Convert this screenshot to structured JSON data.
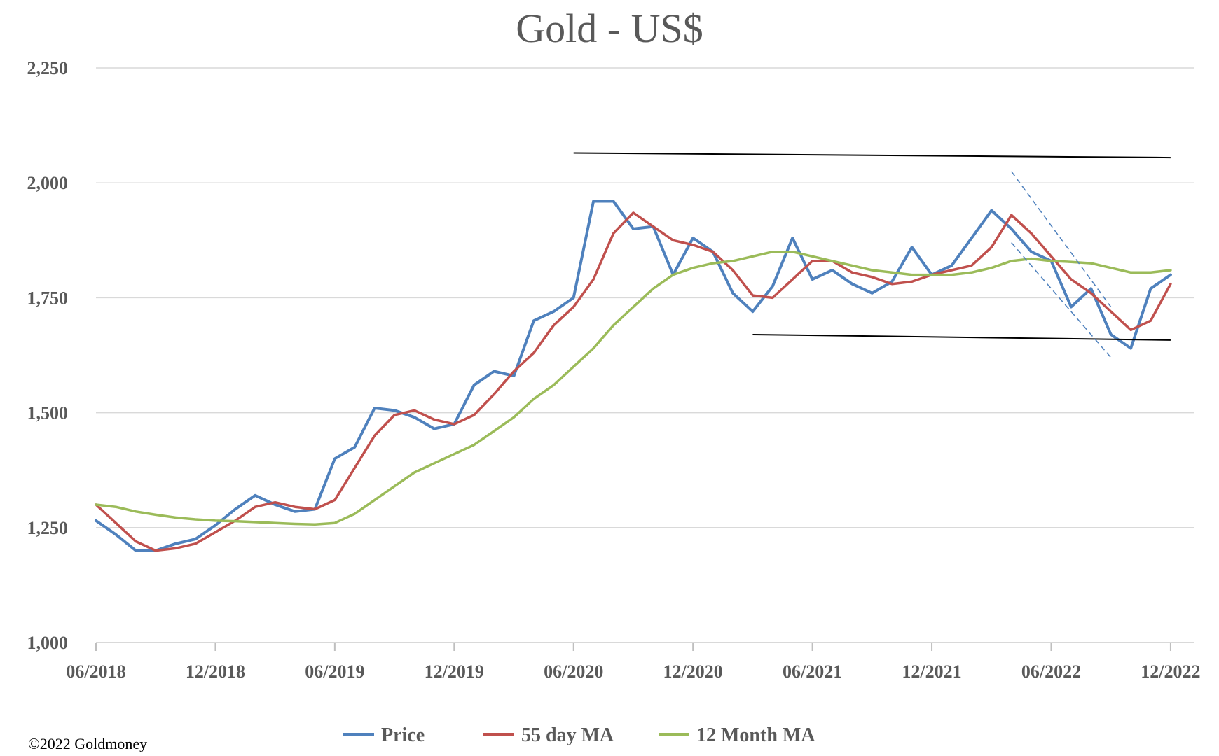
{
  "chart_data": {
    "type": "line",
    "title": "Gold - US$",
    "copyright": "©2022 Goldmoney",
    "ylim": [
      1000,
      2250
    ],
    "y_ticks": [
      1000,
      1250,
      1500,
      1750,
      2000,
      2250
    ],
    "y_tick_labels": [
      "1,000",
      "1,250",
      "1,500",
      "1,750",
      "2,000",
      "2,250"
    ],
    "x_ticks": [
      "06/2018",
      "12/2018",
      "06/2019",
      "12/2019",
      "06/2020",
      "12/2020",
      "06/2021",
      "12/2021",
      "06/2022",
      "12/2022"
    ],
    "x_range": [
      "06/2018",
      "12/2022"
    ],
    "grid": true,
    "legend_position": "bottom",
    "colors": {
      "price": "#4f81bd",
      "ma55": "#c0504d",
      "ma12m": "#9bbb59",
      "trendline": "#000000",
      "channel": "#4f81bd"
    },
    "series": [
      {
        "name": "Price",
        "key": "price",
        "x": [
          "2018-06",
          "2018-07",
          "2018-08",
          "2018-09",
          "2018-10",
          "2018-11",
          "2018-12",
          "2019-01",
          "2019-02",
          "2019-03",
          "2019-04",
          "2019-05",
          "2019-06",
          "2019-07",
          "2019-08",
          "2019-09",
          "2019-10",
          "2019-11",
          "2019-12",
          "2020-01",
          "2020-02",
          "2020-03",
          "2020-04",
          "2020-05",
          "2020-06",
          "2020-07",
          "2020-08",
          "2020-09",
          "2020-10",
          "2020-11",
          "2020-12",
          "2021-01",
          "2021-02",
          "2021-03",
          "2021-04",
          "2021-05",
          "2021-06",
          "2021-07",
          "2021-08",
          "2021-09",
          "2021-10",
          "2021-11",
          "2021-12",
          "2022-01",
          "2022-02",
          "2022-03",
          "2022-04",
          "2022-05",
          "2022-06",
          "2022-07",
          "2022-08",
          "2022-09",
          "2022-10",
          "2022-11",
          "2022-12"
        ],
        "values": [
          1265,
          1235,
          1200,
          1200,
          1215,
          1225,
          1255,
          1290,
          1320,
          1300,
          1285,
          1290,
          1400,
          1425,
          1510,
          1505,
          1490,
          1465,
          1475,
          1560,
          1590,
          1580,
          1700,
          1720,
          1750,
          1960,
          1960,
          1900,
          1905,
          1800,
          1880,
          1850,
          1760,
          1720,
          1775,
          1880,
          1790,
          1810,
          1780,
          1760,
          1785,
          1860,
          1800,
          1820,
          1880,
          1940,
          1900,
          1850,
          1830,
          1730,
          1770,
          1670,
          1640,
          1770,
          1800
        ]
      },
      {
        "name": "55 day MA",
        "key": "ma55",
        "x": [
          "2018-06",
          "2018-07",
          "2018-08",
          "2018-09",
          "2018-10",
          "2018-11",
          "2018-12",
          "2019-01",
          "2019-02",
          "2019-03",
          "2019-04",
          "2019-05",
          "2019-06",
          "2019-07",
          "2019-08",
          "2019-09",
          "2019-10",
          "2019-11",
          "2019-12",
          "2020-01",
          "2020-02",
          "2020-03",
          "2020-04",
          "2020-05",
          "2020-06",
          "2020-07",
          "2020-08",
          "2020-09",
          "2020-10",
          "2020-11",
          "2020-12",
          "2021-01",
          "2021-02",
          "2021-03",
          "2021-04",
          "2021-05",
          "2021-06",
          "2021-07",
          "2021-08",
          "2021-09",
          "2021-10",
          "2021-11",
          "2021-12",
          "2022-01",
          "2022-02",
          "2022-03",
          "2022-04",
          "2022-05",
          "2022-06",
          "2022-07",
          "2022-08",
          "2022-09",
          "2022-10",
          "2022-11",
          "2022-12"
        ],
        "values": [
          1300,
          1260,
          1220,
          1200,
          1205,
          1215,
          1240,
          1265,
          1295,
          1305,
          1295,
          1290,
          1310,
          1380,
          1450,
          1495,
          1505,
          1485,
          1475,
          1495,
          1540,
          1590,
          1630,
          1690,
          1730,
          1790,
          1890,
          1935,
          1905,
          1875,
          1865,
          1850,
          1810,
          1755,
          1750,
          1790,
          1830,
          1830,
          1805,
          1795,
          1780,
          1785,
          1800,
          1810,
          1820,
          1860,
          1930,
          1890,
          1840,
          1790,
          1760,
          1720,
          1680,
          1700,
          1780
        ]
      },
      {
        "name": "12 Month MA",
        "key": "ma12m",
        "x": [
          "2018-06",
          "2018-07",
          "2018-08",
          "2018-09",
          "2018-10",
          "2018-11",
          "2018-12",
          "2019-01",
          "2019-02",
          "2019-03",
          "2019-04",
          "2019-05",
          "2019-06",
          "2019-07",
          "2019-08",
          "2019-09",
          "2019-10",
          "2019-11",
          "2019-12",
          "2020-01",
          "2020-02",
          "2020-03",
          "2020-04",
          "2020-05",
          "2020-06",
          "2020-07",
          "2020-08",
          "2020-09",
          "2020-10",
          "2020-11",
          "2020-12",
          "2021-01",
          "2021-02",
          "2021-03",
          "2021-04",
          "2021-05",
          "2021-06",
          "2021-07",
          "2021-08",
          "2021-09",
          "2021-10",
          "2021-11",
          "2021-12",
          "2022-01",
          "2022-02",
          "2022-03",
          "2022-04",
          "2022-05",
          "2022-06",
          "2022-07",
          "2022-08",
          "2022-09",
          "2022-10",
          "2022-11",
          "2022-12"
        ],
        "values": [
          1300,
          1295,
          1285,
          1278,
          1272,
          1268,
          1265,
          1264,
          1262,
          1260,
          1258,
          1257,
          1260,
          1280,
          1310,
          1340,
          1370,
          1390,
          1410,
          1430,
          1460,
          1490,
          1530,
          1560,
          1600,
          1640,
          1690,
          1730,
          1770,
          1800,
          1815,
          1825,
          1830,
          1840,
          1850,
          1850,
          1840,
          1830,
          1820,
          1810,
          1805,
          1800,
          1800,
          1800,
          1805,
          1815,
          1830,
          1835,
          1830,
          1828,
          1825,
          1815,
          1805,
          1805,
          1810
        ]
      }
    ],
    "annotations": [
      {
        "type": "trendline",
        "style": "solid",
        "from": [
          "2020-06",
          2065
        ],
        "to": [
          "2022-12",
          2055
        ]
      },
      {
        "type": "trendline",
        "style": "solid",
        "from": [
          "2021-03",
          1670
        ],
        "to": [
          "2022-12",
          1658
        ]
      },
      {
        "type": "trendline",
        "style": "dashed",
        "from": [
          "2022-04",
          2025
        ],
        "to": [
          "2022-09",
          1730
        ]
      },
      {
        "type": "trendline",
        "style": "dashed",
        "from": [
          "2022-04",
          1870
        ],
        "to": [
          "2022-09",
          1620
        ]
      }
    ]
  }
}
